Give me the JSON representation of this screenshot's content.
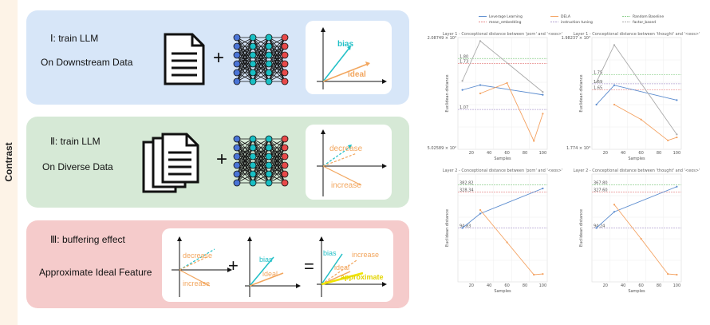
{
  "side_label": "Contrast",
  "panels": [
    {
      "title": "Ⅰ: train LLM",
      "subtitle": "On Downstream Data",
      "vec_labels": [
        "bias",
        "ideal"
      ]
    },
    {
      "title": "Ⅱ: train LLM",
      "subtitle": "On Diverse Data",
      "vec_labels": [
        "decrease",
        "increase"
      ]
    },
    {
      "title": "Ⅲ: buffering effect",
      "subtitle": "Approximate Ideal Feature",
      "card1_labels": [
        "decrease",
        "increase"
      ],
      "card2_labels": [
        "bias",
        "ideal"
      ],
      "card3_labels": [
        "bias",
        "increase",
        "ideal",
        "approximate"
      ],
      "operators": [
        "+",
        "="
      ]
    }
  ],
  "colors": {
    "bias": "#1fbfc6",
    "ideal": "#f2a65e",
    "approximate": "#f0e400",
    "panel1": "#d7e6f8",
    "panel2": "#d6e9d6",
    "panel3": "#f5cbcb"
  },
  "chart_data": {
    "type": "line",
    "legend": [
      "Leverage Learning",
      "DELA",
      "Random Baseline",
      "mean_embedding",
      "instruction tuning",
      "factor_based"
    ],
    "xlabel": "Samples",
    "ylabel": "Euclidean distance",
    "xticks": [
      "20",
      "40",
      "60",
      "80",
      "100"
    ],
    "subplots": [
      {
        "title": "Layer 1 - Conceptional distance between 'porn' and '<eos>'",
        "yrange_labels": [
          "2.08749 × 10³",
          "5.02589 × 10²"
        ],
        "annotations": [
          "1.80",
          "1.73",
          "1.07"
        ],
        "series": [
          {
            "name": "Leverage Learning",
            "x": [
              10,
              30,
              100
            ],
            "y": [
              1.35,
              1.42,
              1.28
            ]
          },
          {
            "name": "DELA",
            "x": [
              30,
              60,
              90,
              100
            ],
            "y": [
              1.3,
              1.45,
              0.62,
              1.01
            ]
          },
          {
            "name": "factor_based",
            "x": [
              10,
              30,
              100
            ],
            "y": [
              1.48,
              2.05,
              1.32
            ]
          }
        ]
      },
      {
        "title": "Layer 1 - Conceptional distance between 'thought' and '<eos>'",
        "yrange_labels": [
          "1.98237 × 10³",
          "1.774 × 10³"
        ],
        "annotations": [
          "1.75",
          "1.65",
          "1.69"
        ],
        "series": [
          {
            "name": "Leverage Learning",
            "x": [
              10,
              30,
              100
            ],
            "y": [
              1.55,
              1.68,
              1.58
            ]
          },
          {
            "name": "DELA",
            "x": [
              30,
              60,
              90,
              100
            ],
            "y": [
              1.55,
              1.45,
              1.31,
              1.33
            ]
          },
          {
            "name": "factor_based",
            "x": [
              10,
              30,
              100
            ],
            "y": [
              1.7,
              1.95,
              1.35
            ]
          }
        ]
      },
      {
        "title": "Layer 2 - Conceptional distance between 'porn' and '<eos>'",
        "annotations": [
          "382.82",
          "328.34",
          "94.83"
        ],
        "series": [
          {
            "name": "Leverage Learning",
            "x": [
              10,
              30,
              100
            ],
            "y": [
              150,
              190,
              260
            ]
          },
          {
            "name": "DELA",
            "x": [
              30,
              60,
              90,
              100
            ],
            "y": [
              200,
              110,
              20,
              22
            ]
          }
        ]
      },
      {
        "title": "Layer 2 - Conceptional distance between 'thought' and '<eos>'",
        "annotations": [
          "367.80",
          "327.60",
          "94.24"
        ],
        "series": [
          {
            "name": "Leverage Learning",
            "x": [
              10,
              30,
              100
            ],
            "y": [
              150,
              195,
              265
            ]
          },
          {
            "name": "DELA",
            "x": [
              30,
              60,
              90,
              100
            ],
            "y": [
              215,
              120,
              22,
              20
            ]
          }
        ]
      }
    ]
  }
}
